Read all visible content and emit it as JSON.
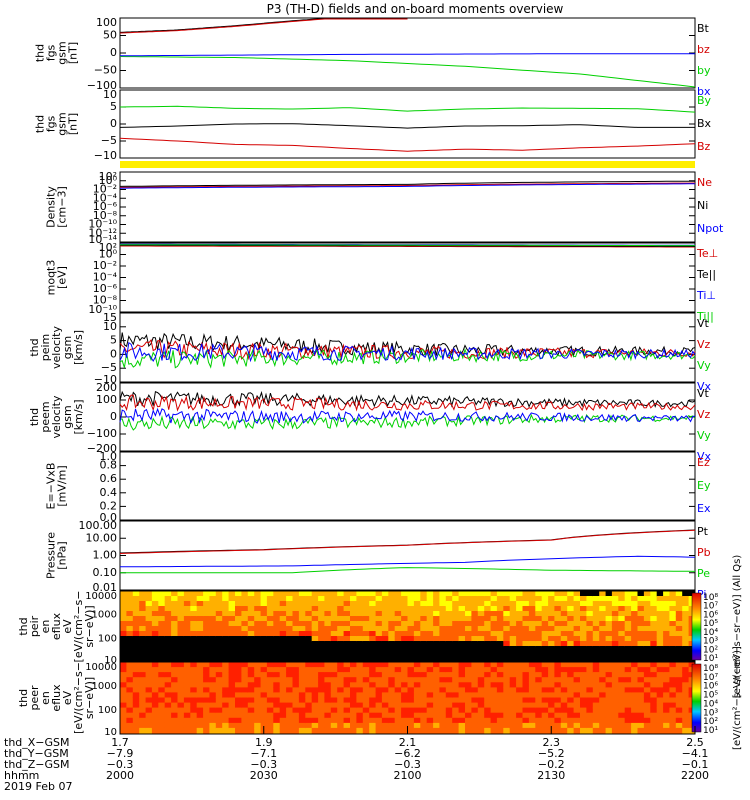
{
  "title": "P3 (TH-D) fields and on-board moments overview",
  "colors": {
    "black": "#000000",
    "red": "#d40000",
    "green": "#00d000",
    "blue": "#0000ff",
    "yellow": "#ffee00"
  },
  "chart_data": [
    {
      "type": "line",
      "ylabel": [
        "thd",
        "fgs",
        "gsm",
        "[nT]"
      ],
      "yticks": [
        "100",
        "50",
        "0",
        "−50",
        "−100"
      ],
      "legend": [
        {
          "name": "Bt",
          "color": "black"
        },
        {
          "name": "bz",
          "color": "red"
        },
        {
          "name": "by",
          "color": "green"
        },
        {
          "name": "bx",
          "color": "blue"
        }
      ],
      "series": [
        {
          "name": "Bt",
          "x": [
            0,
            0.1,
            0.2,
            0.3,
            0.4,
            0.5
          ],
          "y": [
            59,
            66,
            78,
            92,
            105,
            118
          ]
        },
        {
          "name": "bz",
          "x": [
            0,
            0.1,
            0.2,
            0.3,
            0.4,
            0.5
          ],
          "y": [
            57,
            64,
            76,
            90,
            103,
            116
          ]
        },
        {
          "name": "by",
          "x": [
            0,
            0.2,
            0.4,
            0.6,
            0.8,
            1.0
          ],
          "y": [
            -10,
            -13,
            -22,
            -38,
            -60,
            -97
          ]
        },
        {
          "name": "bx",
          "x": [
            0,
            0.2,
            0.4,
            0.6,
            0.8,
            1.0
          ],
          "y": [
            -8,
            -6,
            -4,
            -3,
            -2,
            -2
          ]
        }
      ]
    },
    {
      "type": "line",
      "ylabel": [
        "thd",
        "fgs",
        "gsm",
        "[nT]"
      ],
      "yticks": [
        "10",
        "5",
        "0",
        "−5",
        "−10"
      ],
      "legend": [
        {
          "name": "By",
          "color": "green"
        },
        {
          "name": "Bx",
          "color": "black"
        },
        {
          "name": "Bz",
          "color": "red"
        }
      ],
      "series": [
        {
          "name": "By",
          "x": [
            0,
            0.1,
            0.2,
            0.3,
            0.4,
            0.5,
            0.6,
            0.7,
            0.8,
            0.9,
            1.0
          ],
          "y": [
            5,
            5.2,
            4.6,
            4.4,
            4.8,
            3.8,
            4.4,
            4.7,
            4.6,
            4.5,
            3.5
          ]
        },
        {
          "name": "Bx",
          "x": [
            0,
            0.1,
            0.2,
            0.3,
            0.4,
            0.5,
            0.6,
            0.7,
            0.8,
            0.9,
            1.0
          ],
          "y": [
            -1,
            -0.6,
            0,
            0.1,
            -0.5,
            -1.2,
            -0.6,
            -0.5,
            -0.2,
            -1,
            -1
          ]
        },
        {
          "name": "Bz",
          "x": [
            0,
            0.1,
            0.2,
            0.3,
            0.4,
            0.5,
            0.6,
            0.7,
            0.8,
            0.9,
            1.0
          ],
          "y": [
            -4.2,
            -5,
            -6,
            -6.3,
            -7.2,
            -8,
            -7.4,
            -7.7,
            -7,
            -6.5,
            -5.8
          ]
        }
      ]
    },
    {
      "type": "line",
      "yscale": "log",
      "ylabel": [
        "Density",
        "[cm−3]"
      ],
      "yticks": [
        "10²",
        "10⁰",
        "10⁻²",
        "10⁻⁴",
        "10⁻⁶",
        "10⁻⁸",
        "10⁻¹⁰",
        "10⁻¹²",
        "10⁻¹⁴"
      ],
      "legend": [
        {
          "name": "Ne",
          "color": "red"
        },
        {
          "name": "Ni",
          "color": "black"
        },
        {
          "name": "Npot",
          "color": "blue"
        }
      ],
      "series": [
        {
          "name": "Ne",
          "x": [
            0,
            0.5,
            1.0
          ],
          "y": [
            0.03,
            0.08,
            0.3
          ]
        },
        {
          "name": "Ni",
          "x": [
            0,
            0.5,
            1.0
          ],
          "y": [
            0.05,
            0.15,
            0.8
          ]
        },
        {
          "name": "Npot",
          "x": [
            0,
            0.5,
            1.0
          ],
          "y": [
            0.02,
            0.05,
            0.2
          ]
        }
      ]
    },
    {
      "type": "line",
      "yscale": "log",
      "ylabel": [
        "moqt3",
        "[eV]"
      ],
      "yticks": [
        "10²",
        "10⁰",
        "10⁻²",
        "10⁻⁴",
        "10⁻⁶",
        "10⁻⁸",
        "10⁻¹⁰"
      ],
      "legend": [
        {
          "name": "Te⊥",
          "color": "red"
        },
        {
          "name": "Te||",
          "color": "black"
        },
        {
          "name": "Ti⊥",
          "color": "blue"
        },
        {
          "name": "Ti||",
          "color": "green"
        }
      ],
      "series": [
        {
          "name": "Te⊥",
          "x": [
            0,
            1
          ],
          "y": [
            30,
            20
          ]
        },
        {
          "name": "Te||",
          "x": [
            0,
            1
          ],
          "y": [
            40,
            25
          ]
        },
        {
          "name": "Ti⊥",
          "x": [
            0,
            1
          ],
          "y": [
            60,
            40
          ]
        },
        {
          "name": "Ti||",
          "x": [
            0,
            1
          ],
          "y": [
            50,
            35
          ]
        }
      ]
    },
    {
      "type": "line",
      "ylabel": [
        "thd",
        "peim",
        "velocity",
        "gsm",
        "[km/s]"
      ],
      "yticks": [
        "15",
        "10",
        "5",
        "0",
        "−5",
        "−10"
      ],
      "legend": [
        {
          "name": "Vt",
          "color": "black"
        },
        {
          "name": "Vz",
          "color": "red"
        },
        {
          "name": "Vy",
          "color": "green"
        },
        {
          "name": "Vx",
          "color": "blue"
        }
      ],
      "series": [
        {
          "name": "Vt",
          "x": [
            0,
            0.2,
            0.4,
            0.6,
            0.8,
            1.0
          ],
          "y": [
            5,
            4,
            2.5,
            1.5,
            1.2,
            1.2
          ]
        },
        {
          "name": "Vz",
          "x": [
            0,
            0.2,
            0.4,
            0.6,
            0.8,
            1.0
          ],
          "y": [
            2,
            1.5,
            1,
            0.6,
            0.5,
            0.6
          ]
        },
        {
          "name": "Vy",
          "x": [
            0,
            0.2,
            0.4,
            0.6,
            0.8,
            1.0
          ],
          "y": [
            -2,
            -1.5,
            -1,
            -0.5,
            -0.3,
            -0.3
          ]
        },
        {
          "name": "Vx",
          "x": [
            0,
            0.2,
            0.4,
            0.6,
            0.8,
            1.0
          ],
          "y": [
            1,
            0.8,
            0.5,
            0.3,
            0.2,
            0.2
          ]
        }
      ]
    },
    {
      "type": "line",
      "ylabel": [
        "thd",
        "peem",
        "velocity",
        "gsm",
        "[km/s]"
      ],
      "yticks": [
        "200",
        "100",
        "0",
        "−100",
        "−200"
      ],
      "legend": [
        {
          "name": "Vt",
          "color": "black"
        },
        {
          "name": "Vz",
          "color": "red"
        },
        {
          "name": "Vy",
          "color": "green"
        },
        {
          "name": "Vx",
          "color": "blue"
        }
      ],
      "series": [
        {
          "name": "Vt",
          "x": [
            0,
            0.25,
            0.5,
            0.75,
            1.0
          ],
          "y": [
            110,
            105,
            95,
            85,
            80
          ]
        },
        {
          "name": "Vz",
          "x": [
            0,
            0.25,
            0.5,
            0.75,
            1.0
          ],
          "y": [
            85,
            80,
            70,
            65,
            60
          ]
        },
        {
          "name": "Vy",
          "x": [
            0,
            0.25,
            0.5,
            0.75,
            1.0
          ],
          "y": [
            -40,
            -40,
            -30,
            -10,
            -5
          ]
        },
        {
          "name": "Vx",
          "x": [
            0,
            0.25,
            0.5,
            0.75,
            1.0
          ],
          "y": [
            10,
            0,
            5,
            0,
            -10
          ]
        }
      ]
    },
    {
      "type": "line",
      "ylabel": [
        "E=−VxB",
        "[mV/m]"
      ],
      "yticks": [
        "1.0",
        "0.8",
        "0.6",
        "0.4",
        "0.2",
        "0.0"
      ],
      "legend": [
        {
          "name": "Ez",
          "color": "red"
        },
        {
          "name": "Ey",
          "color": "green"
        },
        {
          "name": "Ex",
          "color": "blue"
        }
      ],
      "series": []
    },
    {
      "type": "line",
      "yscale": "log",
      "ylabel": [
        "Pressure",
        "[nPa]"
      ],
      "yticks": [
        "100.00",
        "10.00",
        "1.00",
        "0.10",
        "0.01"
      ],
      "legend": [
        {
          "name": "Pt",
          "color": "black"
        },
        {
          "name": "Pb",
          "color": "red"
        },
        {
          "name": "Pe",
          "color": "green"
        },
        {
          "name": "Pi",
          "color": "blue"
        }
      ],
      "series": [
        {
          "name": "Pt",
          "x": [
            0,
            0.25,
            0.5,
            0.75,
            1.0
          ],
          "y": [
            1.4,
            2.2,
            4,
            8,
            30
          ]
        },
        {
          "name": "Pb",
          "x": [
            0,
            0.25,
            0.5,
            0.75,
            1.0
          ],
          "y": [
            1.3,
            2.1,
            3.9,
            7.8,
            29
          ]
        },
        {
          "name": "Pe",
          "x": [
            0,
            0.3,
            0.5,
            0.75,
            1.0
          ],
          "y": [
            0.1,
            0.1,
            0.2,
            0.14,
            0.12
          ]
        },
        {
          "name": "Pi",
          "x": [
            0,
            0.3,
            0.6,
            0.9,
            1.0
          ],
          "y": [
            0.22,
            0.25,
            0.4,
            0.9,
            0.8
          ]
        }
      ]
    },
    {
      "type": "heatmap",
      "yscale": "log",
      "ylabel": [
        "thd",
        "peir",
        "en",
        "eflux",
        "eV",
        "[eV/(cm²−s−",
        "sr−eV)]"
      ],
      "yticks": [
        "10000",
        "1000",
        "100",
        "10"
      ],
      "colorbar_ticks": [
        "10⁸",
        "10⁷",
        "10⁶",
        "10⁵",
        "10⁴",
        "10³",
        "10²",
        "10¹"
      ],
      "colorbar_label": "[eV/(cm²−s−sr−eV)] (All Qs)"
    },
    {
      "type": "heatmap",
      "yscale": "log",
      "ylabel": [
        "thd",
        "peer",
        "en",
        "eflux",
        "eV",
        "[eV/(cm²−s−",
        "sr−eV)]"
      ],
      "yticks": [
        "10000",
        "1000",
        "100",
        "10"
      ],
      "colorbar_ticks": [
        "10⁸",
        "10⁷",
        "10⁶",
        "10⁵",
        "10⁴",
        "10³",
        "10²",
        "10¹"
      ],
      "colorbar_label": "[eV/(cm²−s−sr−eV)]"
    }
  ],
  "xaxis": {
    "row_labels": [
      "thd_X−GSM",
      "thd_Y−GSM",
      "thd_Z−GSM",
      "hhmm",
      "2019 Feb 07"
    ],
    "ticks": [
      {
        "x": "1.7",
        "y": "−7.9",
        "z": "−0.3",
        "t": "2000"
      },
      {
        "x": "1.9",
        "y": "−7.1",
        "z": "−0.3",
        "t": "2030"
      },
      {
        "x": "2.1",
        "y": "−6.2",
        "z": "−0.3",
        "t": "2100"
      },
      {
        "x": "2.3",
        "y": "−5.2",
        "z": "−0.2",
        "t": "2130"
      },
      {
        "x": "2.5",
        "y": "−4.1",
        "z": "−0.1",
        "t": "2200"
      }
    ]
  }
}
